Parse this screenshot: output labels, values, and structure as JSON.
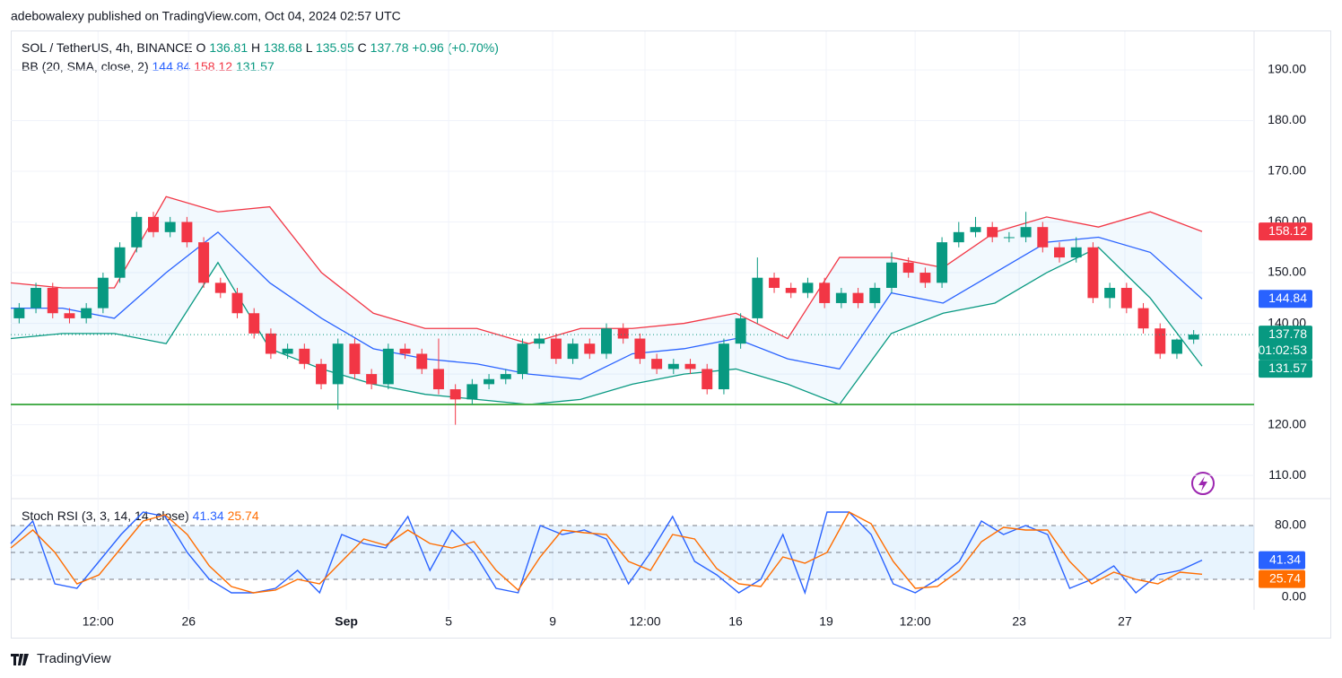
{
  "header": {
    "published": "adebowalexy published on TradingView.com, Oct 04, 2024 02:57 UTC",
    "brand": "TradingView"
  },
  "chart_data": {
    "type": "candlestick",
    "title": "SOL / TetherUS, 4h, BINANCE",
    "ohlc_labels": [
      "O",
      "H",
      "L",
      "C"
    ],
    "change": "+0.96 (+0.70%)",
    "countdown": "01:02:53",
    "up_color": "#089981",
    "down_color": "#f23645",
    "candles": [
      [
        141,
        144,
        140,
        143
      ],
      [
        143,
        148,
        142,
        147
      ],
      [
        147,
        148,
        141,
        142
      ],
      [
        142,
        143,
        140,
        141
      ],
      [
        141,
        144,
        140,
        143
      ],
      [
        143,
        150,
        142,
        149
      ],
      [
        149,
        156,
        148,
        155
      ],
      [
        155,
        162,
        154,
        161
      ],
      [
        161,
        162,
        157,
        158
      ],
      [
        158,
        161,
        157,
        160
      ],
      [
        160,
        161,
        155,
        156
      ],
      [
        156,
        157,
        147,
        148
      ],
      [
        148,
        149,
        145,
        146
      ],
      [
        146,
        147,
        141,
        142
      ],
      [
        142,
        143,
        137,
        138
      ],
      [
        138,
        139,
        133,
        134
      ],
      [
        134,
        136,
        133,
        135
      ],
      [
        135,
        136,
        131,
        132
      ],
      [
        132,
        133,
        127,
        128
      ],
      [
        128,
        137,
        123,
        136
      ],
      [
        136,
        137,
        129,
        130
      ],
      [
        130,
        131,
        127,
        128
      ],
      [
        128,
        136,
        127,
        135
      ],
      [
        135,
        136,
        133,
        134
      ],
      [
        134,
        135,
        130,
        131
      ],
      [
        131,
        137,
        126,
        127
      ],
      [
        127,
        128,
        120,
        125
      ],
      [
        125,
        129,
        124,
        128
      ],
      [
        128,
        130,
        127,
        129
      ],
      [
        129,
        131,
        128,
        130
      ],
      [
        130,
        137,
        129,
        136
      ],
      [
        136,
        138,
        135,
        137
      ],
      [
        137,
        138,
        132,
        133
      ],
      [
        133,
        137,
        132,
        136
      ],
      [
        136,
        137,
        133,
        134
      ],
      [
        134,
        140,
        133,
        139
      ],
      [
        139,
        140,
        136,
        137
      ],
      [
        137,
        138,
        132,
        133
      ],
      [
        133,
        134,
        130,
        131
      ],
      [
        131,
        133,
        130,
        132
      ],
      [
        132,
        133,
        130,
        131
      ],
      [
        131,
        132,
        126,
        127
      ],
      [
        127,
        137,
        126,
        136
      ],
      [
        136,
        142,
        135,
        141
      ],
      [
        141,
        153,
        140,
        149
      ],
      [
        149,
        150,
        146,
        147
      ],
      [
        147,
        148,
        145,
        146
      ],
      [
        146,
        149,
        145,
        148
      ],
      [
        148,
        149,
        143,
        144
      ],
      [
        144,
        147,
        143,
        146
      ],
      [
        146,
        147,
        143,
        144
      ],
      [
        144,
        148,
        143,
        147
      ],
      [
        147,
        154,
        146,
        152
      ],
      [
        152,
        153,
        149,
        150
      ],
      [
        150,
        151,
        147,
        148
      ],
      [
        148,
        157,
        147,
        156
      ],
      [
        156,
        160,
        155,
        158
      ],
      [
        158,
        161,
        157,
        159
      ],
      [
        159,
        160,
        156,
        157
      ],
      [
        157,
        158,
        156,
        157
      ],
      [
        157,
        162,
        156,
        159
      ],
      [
        159,
        160,
        154,
        155
      ],
      [
        155,
        156,
        152,
        153
      ],
      [
        153,
        157,
        152,
        155
      ],
      [
        155,
        156,
        144,
        145
      ],
      [
        145,
        148,
        143,
        147
      ],
      [
        147,
        148,
        142,
        143
      ],
      [
        143,
        144,
        138,
        139
      ],
      [
        139,
        140,
        133,
        134
      ],
      [
        134,
        137,
        133,
        136.81
      ],
      [
        136.81,
        138.68,
        135.95,
        137.78
      ]
    ],
    "bb_label": "BB (20, SMA, close, 2)",
    "bands": [
      {
        "name": "basis",
        "color": "#2962ff",
        "values": [
          143,
          143,
          141,
          150,
          158,
          148,
          141,
          135,
          133,
          132,
          130,
          129,
          134,
          135,
          137,
          133,
          131,
          146,
          144,
          150,
          156,
          157,
          154,
          144.84
        ]
      },
      {
        "name": "upper",
        "color": "#f23645",
        "values": [
          148,
          147,
          147,
          165,
          162,
          163,
          150,
          142,
          139,
          139,
          136,
          139,
          139,
          140,
          142,
          137,
          153,
          153,
          151,
          158,
          161,
          159,
          162,
          158.12
        ]
      },
      {
        "name": "lower",
        "color": "#089981",
        "values": [
          137,
          138,
          138,
          136,
          152,
          135,
          131,
          128,
          126,
          125,
          124,
          125,
          128,
          130,
          131,
          128,
          124,
          138,
          142,
          144,
          150,
          155,
          145,
          131.57
        ]
      }
    ],
    "support": 124,
    "support_color": "#4caf50",
    "ylim": [
      105.6,
      197.6
    ],
    "yticks": [
      {
        "value": 110,
        "label": "110.00"
      },
      {
        "value": 120,
        "label": "120.00"
      },
      {
        "value": 130,
        "label": "130.00"
      },
      {
        "value": 140,
        "label": "140.00"
      },
      {
        "value": 150,
        "label": "150.00"
      },
      {
        "value": 160,
        "label": "160.00"
      },
      {
        "value": 170,
        "label": "170.00"
      },
      {
        "value": 180,
        "label": "180.00"
      },
      {
        "value": 190,
        "label": "190.00"
      }
    ],
    "xticks": [
      {
        "value": 4.7,
        "label": "12:00"
      },
      {
        "value": 10.1,
        "label": "26"
      },
      {
        "value": 19.5,
        "label": "Sep"
      },
      {
        "value": 25.6,
        "label": "5"
      },
      {
        "value": 31.8,
        "label": "9"
      },
      {
        "value": 37.3,
        "label": "12:00"
      },
      {
        "value": 42.7,
        "label": "16"
      },
      {
        "value": 48.1,
        "label": "19"
      },
      {
        "value": 53.4,
        "label": "12:00"
      },
      {
        "value": 59.6,
        "label": "23"
      },
      {
        "value": 65.9,
        "label": "27"
      }
    ],
    "grid": true,
    "stoch": {
      "label": "Stoch RSI (3, 3, 14, 14, close)",
      "series": [
        {
          "name": "K",
          "color": "#2962ff",
          "values": [
            60,
            85,
            15,
            10,
            40,
            70,
            95,
            90,
            50,
            20,
            5,
            5,
            10,
            30,
            5,
            70,
            60,
            55,
            90,
            30,
            75,
            50,
            10,
            5,
            80,
            70,
            75,
            65,
            15,
            50,
            90,
            40,
            25,
            5,
            20,
            70,
            5,
            95,
            95,
            70,
            15,
            5,
            20,
            40,
            85,
            70,
            80,
            70,
            10,
            20,
            35,
            5,
            25,
            30,
            41.34
          ]
        },
        {
          "name": "D",
          "color": "#ff6d00",
          "values": [
            55,
            75,
            50,
            15,
            25,
            55,
            85,
            92,
            70,
            35,
            12,
            5,
            8,
            20,
            15,
            40,
            65,
            58,
            75,
            60,
            55,
            62,
            30,
            8,
            45,
            75,
            72,
            70,
            40,
            30,
            70,
            65,
            32,
            15,
            12,
            45,
            38,
            50,
            95,
            82,
            40,
            10,
            12,
            30,
            62,
            78,
            75,
            75,
            40,
            15,
            28,
            20,
            15,
            28,
            25.74
          ]
        }
      ],
      "levels": [
        20,
        50,
        80
      ],
      "ylim": [
        -14,
        109
      ],
      "yticks": [
        {
          "value": 0,
          "label": "0.00"
        },
        {
          "value": 80,
          "label": "80.00"
        }
      ]
    }
  }
}
